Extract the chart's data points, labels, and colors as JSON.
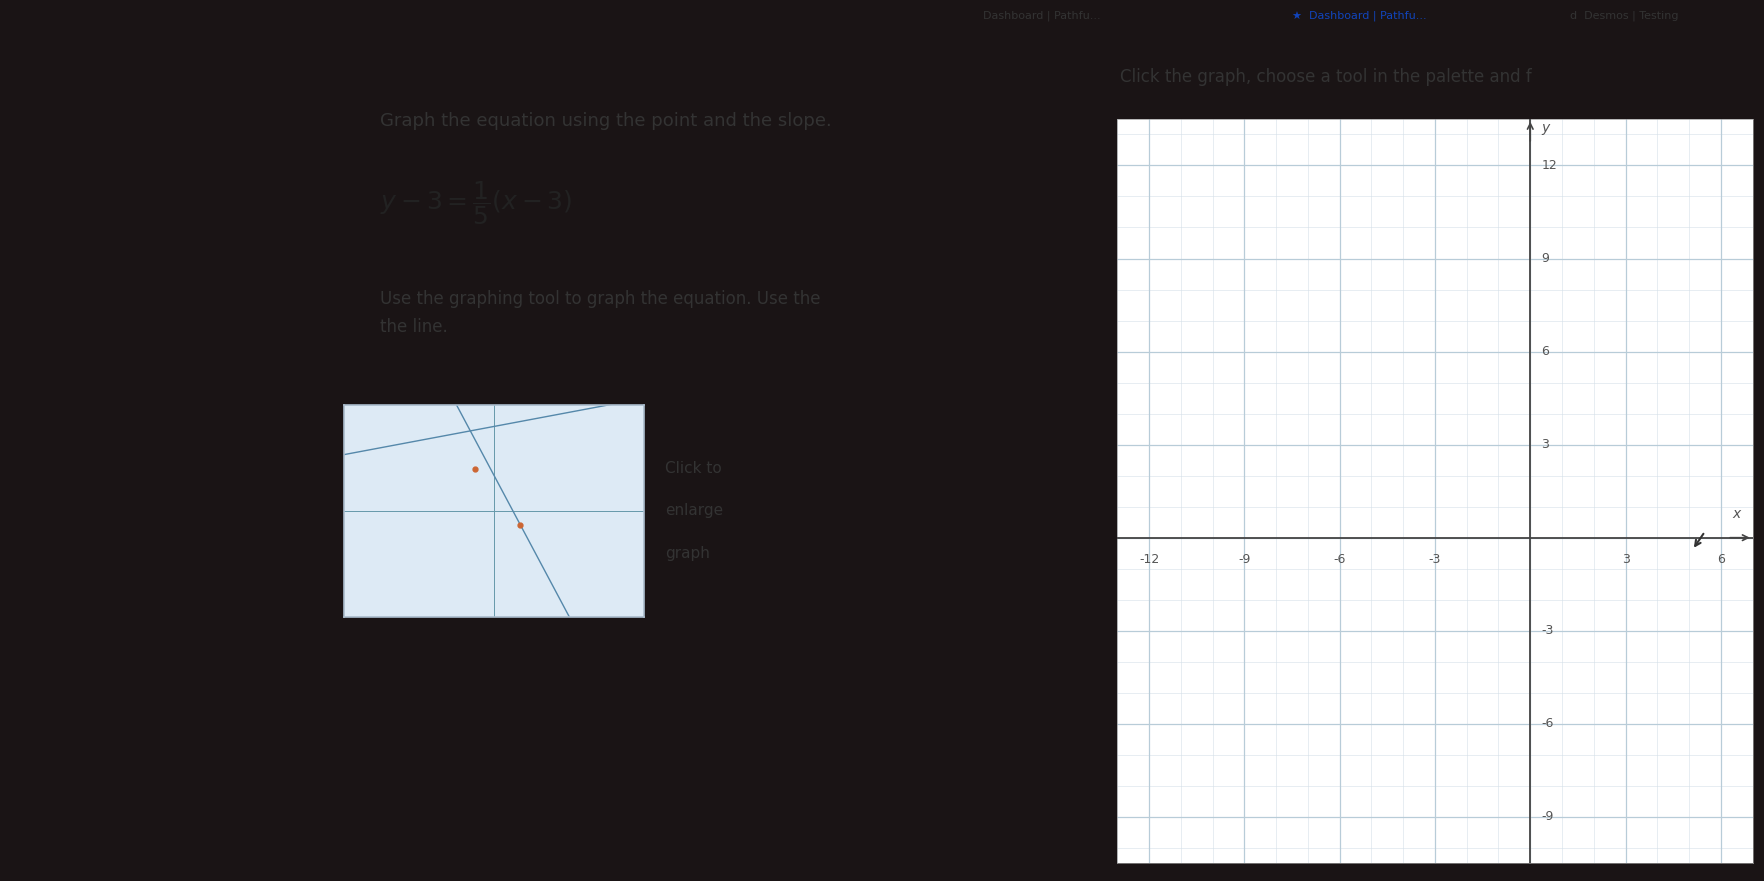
{
  "bg_very_dark": "#1a1415",
  "bg_medium_dark": "#2d2830",
  "bg_left_content": "#e8e8ec",
  "bg_white": "#ffffff",
  "bg_top_browser": "#c8b8d0",
  "bg_blue_bar": "#2a7fc0",
  "tab_text_1": "Dashboard | Pathfu...",
  "tab_text_2": "Desmos | Testing",
  "instruction_text": "Graph the equation using the point and the slope.",
  "body_text1": "Use the graphing tool to graph the equation. Use the",
  "body_text2": "the line.",
  "hint_box_text": "Click the graph, choose a tool in the palette and f",
  "thumbnail_text1": "Click to",
  "thumbnail_text2": "enlarge",
  "thumbnail_text3": "graph",
  "grid_bg": "#ffffff",
  "grid_fine_color": "#d4dfe8",
  "grid_bold_color": "#b8ccd8",
  "axis_color": "#444444",
  "tick_label_color": "#555555",
  "x_ticks": [
    -12,
    -9,
    -6,
    -3,
    3,
    6
  ],
  "y_ticks": [
    12,
    9,
    6,
    3,
    -3,
    -6,
    -9
  ],
  "hint_box_bg": "#fef9e8",
  "hint_box_border": "#ddc87a",
  "thumbnail_bg": "#ddeaf5",
  "thumbnail_border": "#aabccc",
  "text_color": "#333333",
  "eq_color": "#222222"
}
